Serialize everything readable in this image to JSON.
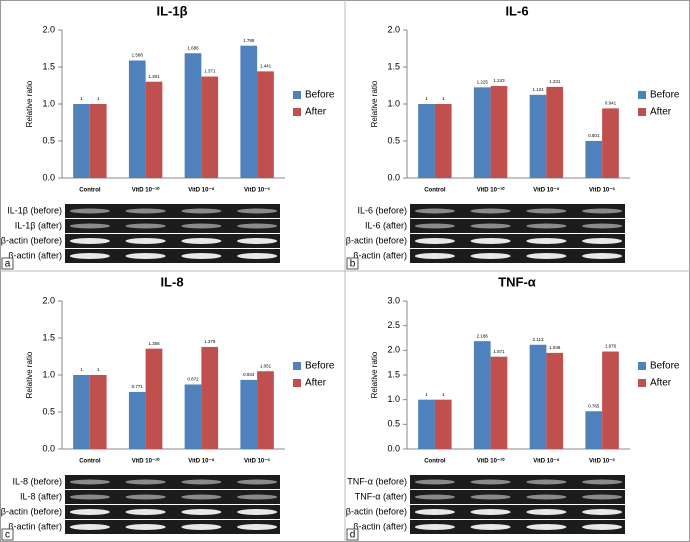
{
  "chart_data": [
    {
      "type": "bar",
      "panel": "a",
      "title": "IL-1β",
      "y_label": "Relative  ratio",
      "categories": [
        "Control",
        "VitD 10⁻¹⁰",
        "VitD 10⁻⁸",
        "VitD 10⁻⁶"
      ],
      "series": [
        {
          "name": "Before",
          "color": "#4f81bd",
          "values": [
            1,
            1.588,
            1.686,
            1.788
          ]
        },
        {
          "name": "After",
          "color": "#c0504d",
          "values": [
            1,
            1.301,
            1.371,
            1.441
          ]
        }
      ],
      "ylim": [
        0,
        2
      ],
      "yticks": [
        {
          "value": 0,
          "label": "0.0"
        },
        {
          "value": 0.5,
          "label": "0.5"
        },
        {
          "value": 1,
          "label": "1.0"
        },
        {
          "value": 1.5,
          "label": "1.5"
        },
        {
          "value": 2,
          "label": "2.0"
        }
      ],
      "grid": false,
      "gel_labels": [
        "IL-1β (before)",
        "IL-1β (after)",
        "β-actin (before)",
        "β-actin (after)"
      ]
    },
    {
      "type": "bar",
      "panel": "b",
      "title": "IL-6",
      "y_label": "Relative  ratio",
      "categories": [
        "Control",
        "VitD 10⁻¹⁰",
        "VitD 10⁻⁸",
        "VitD 10⁻⁶"
      ],
      "series": [
        {
          "name": "Before",
          "color": "#4f81bd",
          "values": [
            1,
            1.225,
            1.124,
            0.501
          ]
        },
        {
          "name": "After",
          "color": "#c0504d",
          "values": [
            1,
            1.243,
            1.231,
            0.941
          ]
        }
      ],
      "ylim": [
        0,
        2
      ],
      "yticks": [
        {
          "value": 0,
          "label": "0.0"
        },
        {
          "value": 0.5,
          "label": "0.5"
        },
        {
          "value": 1,
          "label": "1.0"
        },
        {
          "value": 1.5,
          "label": "1.5"
        },
        {
          "value": 2,
          "label": "2.0"
        }
      ],
      "grid": false,
      "gel_labels": [
        "IL-6 (before)",
        "IL-6 (after)",
        "β-actin (before)",
        "β-actin (after)"
      ]
    },
    {
      "type": "bar",
      "panel": "c",
      "title": "IL-8",
      "y_label": "Relative  ratio",
      "categories": [
        "Control",
        "VitD 10⁻¹⁰",
        "VitD 10⁻⁸",
        "VitD 10⁻⁶"
      ],
      "series": [
        {
          "name": "Before",
          "color": "#4f81bd",
          "values": [
            1,
            0.771,
            0.872,
            0.934
          ]
        },
        {
          "name": "After",
          "color": "#c0504d",
          "values": [
            1,
            1.356,
            1.379,
            1.051
          ]
        }
      ],
      "ylim": [
        0,
        2
      ],
      "yticks": [
        {
          "value": 0,
          "label": "0.0"
        },
        {
          "value": 0.5,
          "label": "0.5"
        },
        {
          "value": 1,
          "label": "1.0"
        },
        {
          "value": 1.5,
          "label": "1.5"
        },
        {
          "value": 2,
          "label": "2.0"
        }
      ],
      "grid": false,
      "gel_labels": [
        "IL-8 (before)",
        "IL-8 (after)",
        "β-actin (before)",
        "β-actin (after)"
      ]
    },
    {
      "type": "bar",
      "panel": "d",
      "title": "TNF-α",
      "y_label": "Relative  ratio",
      "categories": [
        "Control",
        "VitD 10⁻¹⁰",
        "VitD 10⁻⁸",
        "VitD 10⁻⁶"
      ],
      "series": [
        {
          "name": "Before",
          "color": "#4f81bd",
          "values": [
            1,
            2.186,
            2.113,
            0.765
          ]
        },
        {
          "name": "After",
          "color": "#c0504d",
          "values": [
            1,
            1.871,
            1.948,
            1.976
          ]
        }
      ],
      "ylim": [
        0,
        3
      ],
      "yticks": [
        {
          "value": 0,
          "label": "0.0"
        },
        {
          "value": 0.5,
          "label": "0.5"
        },
        {
          "value": 1,
          "label": "1.0"
        },
        {
          "value": 1.5,
          "label": "1.5"
        },
        {
          "value": 2,
          "label": "2.0"
        },
        {
          "value": 2.5,
          "label": "2.5"
        },
        {
          "value": 3,
          "label": "3.0"
        }
      ],
      "grid": false,
      "gel_labels": [
        "TNF-α (before)",
        "TNF-α (after)",
        "β-actin (before)",
        "β-actin (after)"
      ]
    }
  ]
}
